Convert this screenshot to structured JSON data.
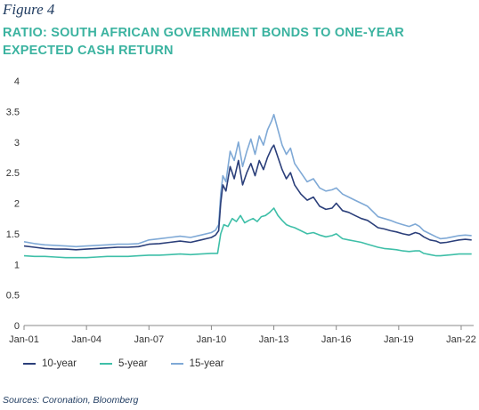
{
  "figure_label": "Figure 4",
  "title_line1": "RATIO: SOUTH AFRICAN GOVERNMENT BONDS TO ONE-YEAR",
  "title_line2": "EXPECTED CASH RETURN",
  "source": "Sources: Coronation, Bloomberg",
  "chart_data": {
    "type": "line",
    "title": "RATIO: SOUTH AFRICAN GOVERNMENT BONDS TO ONE-YEAR EXPECTED CASH RETURN",
    "xlabel": "",
    "ylabel": "",
    "ylim": [
      0,
      4
    ],
    "yticks": [
      "0",
      "0.5",
      "1",
      "1.5",
      "2",
      "2.5",
      "3",
      "3.5",
      "4"
    ],
    "xlim": [
      2001.0,
      2022.6
    ],
    "xticks": [
      {
        "label": "Jan-01",
        "x": 2001.0
      },
      {
        "label": "Jan-04",
        "x": 2004.0
      },
      {
        "label": "Jan-07",
        "x": 2007.0
      },
      {
        "label": "Jan-10",
        "x": 2010.0
      },
      {
        "label": "Jan-13",
        "x": 2013.0
      },
      {
        "label": "Jan-16",
        "x": 2016.0
      },
      {
        "label": "Jan-19",
        "x": 2019.0
      },
      {
        "label": "Jan-22",
        "x": 2022.0
      }
    ],
    "grid": false,
    "legend_position": "bottom-left",
    "series": [
      {
        "name": "10-year",
        "color": "#2b3f7a",
        "points": [
          [
            2001.0,
            1.3
          ],
          [
            2001.5,
            1.28
          ],
          [
            2002.0,
            1.26
          ],
          [
            2002.5,
            1.25
          ],
          [
            2003.0,
            1.25
          ],
          [
            2003.5,
            1.24
          ],
          [
            2004.0,
            1.25
          ],
          [
            2004.5,
            1.26
          ],
          [
            2005.0,
            1.27
          ],
          [
            2005.5,
            1.28
          ],
          [
            2006.0,
            1.28
          ],
          [
            2006.5,
            1.29
          ],
          [
            2007.0,
            1.33
          ],
          [
            2007.5,
            1.34
          ],
          [
            2008.0,
            1.36
          ],
          [
            2008.5,
            1.38
          ],
          [
            2009.0,
            1.36
          ],
          [
            2009.5,
            1.4
          ],
          [
            2010.0,
            1.44
          ],
          [
            2010.2,
            1.48
          ],
          [
            2010.35,
            1.55
          ],
          [
            2010.45,
            2.0
          ],
          [
            2010.55,
            2.3
          ],
          [
            2010.7,
            2.2
          ],
          [
            2010.9,
            2.6
          ],
          [
            2011.1,
            2.4
          ],
          [
            2011.3,
            2.7
          ],
          [
            2011.5,
            2.3
          ],
          [
            2011.7,
            2.5
          ],
          [
            2011.9,
            2.65
          ],
          [
            2012.1,
            2.45
          ],
          [
            2012.3,
            2.7
          ],
          [
            2012.5,
            2.55
          ],
          [
            2012.7,
            2.75
          ],
          [
            2012.9,
            2.9
          ],
          [
            2013.0,
            2.95
          ],
          [
            2013.2,
            2.75
          ],
          [
            2013.4,
            2.55
          ],
          [
            2013.6,
            2.4
          ],
          [
            2013.8,
            2.5
          ],
          [
            2014.0,
            2.3
          ],
          [
            2014.3,
            2.15
          ],
          [
            2014.6,
            2.05
          ],
          [
            2014.9,
            2.1
          ],
          [
            2015.2,
            1.95
          ],
          [
            2015.5,
            1.9
          ],
          [
            2015.8,
            1.92
          ],
          [
            2016.0,
            2.0
          ],
          [
            2016.3,
            1.88
          ],
          [
            2016.6,
            1.85
          ],
          [
            2016.9,
            1.8
          ],
          [
            2017.2,
            1.75
          ],
          [
            2017.5,
            1.72
          ],
          [
            2017.8,
            1.65
          ],
          [
            2018.0,
            1.6
          ],
          [
            2018.3,
            1.58
          ],
          [
            2018.6,
            1.55
          ],
          [
            2018.9,
            1.53
          ],
          [
            2019.2,
            1.5
          ],
          [
            2019.5,
            1.48
          ],
          [
            2019.8,
            1.52
          ],
          [
            2020.0,
            1.5
          ],
          [
            2020.2,
            1.45
          ],
          [
            2020.5,
            1.4
          ],
          [
            2020.8,
            1.38
          ],
          [
            2021.0,
            1.35
          ],
          [
            2021.3,
            1.36
          ],
          [
            2021.6,
            1.38
          ],
          [
            2021.9,
            1.4
          ],
          [
            2022.2,
            1.41
          ],
          [
            2022.5,
            1.4
          ]
        ]
      },
      {
        "name": "5-year",
        "color": "#3fbfa8",
        "points": [
          [
            2001.0,
            1.14
          ],
          [
            2001.5,
            1.13
          ],
          [
            2002.0,
            1.13
          ],
          [
            2002.5,
            1.12
          ],
          [
            2003.0,
            1.11
          ],
          [
            2003.5,
            1.11
          ],
          [
            2004.0,
            1.11
          ],
          [
            2004.5,
            1.12
          ],
          [
            2005.0,
            1.13
          ],
          [
            2005.5,
            1.13
          ],
          [
            2006.0,
            1.13
          ],
          [
            2006.5,
            1.14
          ],
          [
            2007.0,
            1.15
          ],
          [
            2007.5,
            1.15
          ],
          [
            2008.0,
            1.16
          ],
          [
            2008.5,
            1.17
          ],
          [
            2009.0,
            1.16
          ],
          [
            2009.5,
            1.17
          ],
          [
            2010.0,
            1.18
          ],
          [
            2010.3,
            1.18
          ],
          [
            2010.45,
            1.5
          ],
          [
            2010.6,
            1.65
          ],
          [
            2010.8,
            1.62
          ],
          [
            2011.0,
            1.75
          ],
          [
            2011.2,
            1.7
          ],
          [
            2011.4,
            1.8
          ],
          [
            2011.6,
            1.68
          ],
          [
            2011.8,
            1.72
          ],
          [
            2012.0,
            1.75
          ],
          [
            2012.2,
            1.7
          ],
          [
            2012.4,
            1.78
          ],
          [
            2012.6,
            1.8
          ],
          [
            2012.8,
            1.85
          ],
          [
            2013.0,
            1.92
          ],
          [
            2013.2,
            1.8
          ],
          [
            2013.4,
            1.72
          ],
          [
            2013.6,
            1.65
          ],
          [
            2013.8,
            1.62
          ],
          [
            2014.0,
            1.6
          ],
          [
            2014.3,
            1.55
          ],
          [
            2014.6,
            1.5
          ],
          [
            2014.9,
            1.52
          ],
          [
            2015.2,
            1.48
          ],
          [
            2015.5,
            1.45
          ],
          [
            2015.8,
            1.47
          ],
          [
            2016.0,
            1.5
          ],
          [
            2016.3,
            1.42
          ],
          [
            2016.6,
            1.4
          ],
          [
            2016.9,
            1.38
          ],
          [
            2017.2,
            1.36
          ],
          [
            2017.5,
            1.33
          ],
          [
            2017.8,
            1.3
          ],
          [
            2018.0,
            1.28
          ],
          [
            2018.3,
            1.26
          ],
          [
            2018.6,
            1.25
          ],
          [
            2018.9,
            1.24
          ],
          [
            2019.2,
            1.22
          ],
          [
            2019.5,
            1.21
          ],
          [
            2019.8,
            1.22
          ],
          [
            2020.0,
            1.22
          ],
          [
            2020.2,
            1.18
          ],
          [
            2020.5,
            1.16
          ],
          [
            2020.8,
            1.14
          ],
          [
            2021.0,
            1.14
          ],
          [
            2021.3,
            1.15
          ],
          [
            2021.6,
            1.16
          ],
          [
            2021.9,
            1.17
          ],
          [
            2022.2,
            1.17
          ],
          [
            2022.5,
            1.17
          ]
        ]
      },
      {
        "name": "15-year",
        "color": "#7fa9d6",
        "points": [
          [
            2001.0,
            1.37
          ],
          [
            2001.5,
            1.34
          ],
          [
            2002.0,
            1.32
          ],
          [
            2002.5,
            1.31
          ],
          [
            2003.0,
            1.3
          ],
          [
            2003.5,
            1.29
          ],
          [
            2004.0,
            1.3
          ],
          [
            2004.5,
            1.31
          ],
          [
            2005.0,
            1.32
          ],
          [
            2005.5,
            1.33
          ],
          [
            2006.0,
            1.33
          ],
          [
            2006.5,
            1.34
          ],
          [
            2007.0,
            1.4
          ],
          [
            2007.5,
            1.42
          ],
          [
            2008.0,
            1.44
          ],
          [
            2008.5,
            1.46
          ],
          [
            2009.0,
            1.44
          ],
          [
            2009.5,
            1.48
          ],
          [
            2010.0,
            1.52
          ],
          [
            2010.2,
            1.56
          ],
          [
            2010.35,
            1.65
          ],
          [
            2010.45,
            2.15
          ],
          [
            2010.55,
            2.45
          ],
          [
            2010.7,
            2.35
          ],
          [
            2010.9,
            2.85
          ],
          [
            2011.1,
            2.7
          ],
          [
            2011.3,
            3.0
          ],
          [
            2011.5,
            2.6
          ],
          [
            2011.7,
            2.85
          ],
          [
            2011.9,
            3.05
          ],
          [
            2012.1,
            2.8
          ],
          [
            2012.3,
            3.1
          ],
          [
            2012.5,
            2.95
          ],
          [
            2012.7,
            3.2
          ],
          [
            2012.9,
            3.35
          ],
          [
            2013.0,
            3.45
          ],
          [
            2013.2,
            3.2
          ],
          [
            2013.4,
            2.95
          ],
          [
            2013.6,
            2.8
          ],
          [
            2013.8,
            2.9
          ],
          [
            2014.0,
            2.65
          ],
          [
            2014.3,
            2.5
          ],
          [
            2014.6,
            2.35
          ],
          [
            2014.9,
            2.4
          ],
          [
            2015.2,
            2.25
          ],
          [
            2015.5,
            2.2
          ],
          [
            2015.8,
            2.22
          ],
          [
            2016.0,
            2.25
          ],
          [
            2016.3,
            2.15
          ],
          [
            2016.6,
            2.1
          ],
          [
            2016.9,
            2.05
          ],
          [
            2017.2,
            2.0
          ],
          [
            2017.5,
            1.95
          ],
          [
            2017.8,
            1.85
          ],
          [
            2018.0,
            1.78
          ],
          [
            2018.3,
            1.75
          ],
          [
            2018.6,
            1.72
          ],
          [
            2018.9,
            1.68
          ],
          [
            2019.2,
            1.65
          ],
          [
            2019.5,
            1.62
          ],
          [
            2019.8,
            1.66
          ],
          [
            2020.0,
            1.62
          ],
          [
            2020.2,
            1.55
          ],
          [
            2020.5,
            1.5
          ],
          [
            2020.8,
            1.45
          ],
          [
            2021.0,
            1.42
          ],
          [
            2021.3,
            1.43
          ],
          [
            2021.6,
            1.45
          ],
          [
            2021.9,
            1.47
          ],
          [
            2022.2,
            1.48
          ],
          [
            2022.5,
            1.47
          ]
        ]
      }
    ]
  }
}
